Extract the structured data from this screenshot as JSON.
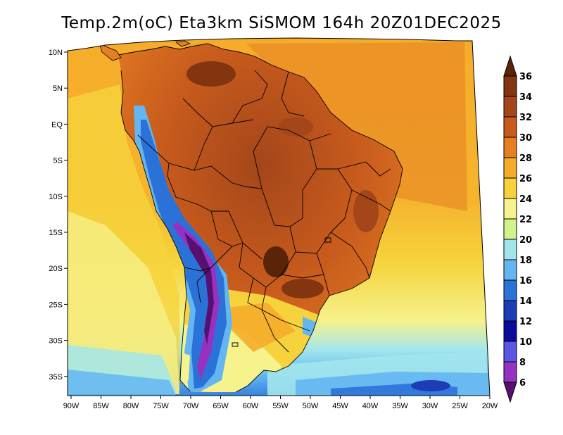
{
  "map": {
    "title": "Temp.2m(oC) Eta3km SiSMOM 164h 20Z01DEC2025",
    "lon_labels": [
      "90W",
      "85W",
      "80W",
      "75W",
      "70W",
      "65W",
      "60W",
      "55W",
      "50W",
      "45W",
      "40W",
      "35W",
      "30W",
      "25W",
      "20W"
    ],
    "lat_labels": [
      "10N",
      "5N",
      "EQ",
      "5S",
      "10S",
      "15S",
      "20S",
      "25S",
      "30S",
      "35S"
    ],
    "variable": "Temp.2m",
    "units": "oC"
  },
  "colorbar": {
    "labels": [
      "36",
      "34",
      "32",
      "30",
      "28",
      "26",
      "24",
      "22",
      "20",
      "18",
      "16",
      "14",
      "12",
      "10",
      "8",
      "6"
    ],
    "colors": [
      "#5a2408",
      "#82350f",
      "#a4461a",
      "#c85b1d",
      "#e48022",
      "#f4ac2a",
      "#f6d33c",
      "#f6f28c",
      "#d2f28c",
      "#a2e6ec",
      "#63b6f2",
      "#2b72d8",
      "#1e3cb4",
      "#0c0c9c",
      "#5a56e6",
      "#9632c2",
      "#581070"
    ]
  }
}
